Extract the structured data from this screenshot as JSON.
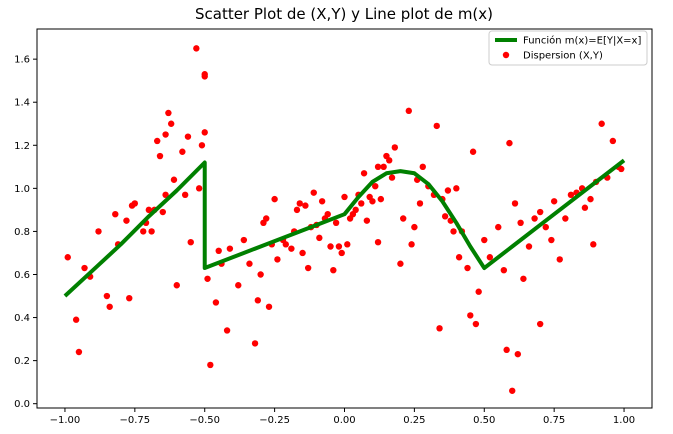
{
  "chart_data": {
    "type": "scatter",
    "title": "Scatter Plot de (X,Y) y Line plot de m(x)",
    "xlabel": "",
    "ylabel": "",
    "xlim": [
      -1.1,
      1.1
    ],
    "ylim": [
      -0.02,
      1.74
    ],
    "xticks": [
      -1.0,
      -0.75,
      -0.5,
      -0.25,
      0.0,
      0.25,
      0.5,
      0.75,
      1.0
    ],
    "xtick_labels": [
      "−1.00",
      "−0.75",
      "−0.50",
      "−0.25",
      "0.00",
      "0.25",
      "0.50",
      "0.75",
      "1.00"
    ],
    "yticks": [
      0.0,
      0.2,
      0.4,
      0.6,
      0.8,
      1.0,
      1.2,
      1.4,
      1.6
    ],
    "ytick_labels": [
      "0.0",
      "0.2",
      "0.4",
      "0.6",
      "0.8",
      "1.0",
      "1.2",
      "1.4",
      "1.6"
    ],
    "grid": false,
    "legend_position": "top-right",
    "series": [
      {
        "name": "Función m(x)=E[Y|X=x]",
        "kind": "line",
        "color": "#008000",
        "x": [
          -1.0,
          -0.9,
          -0.8,
          -0.7,
          -0.6,
          -0.5,
          -0.5,
          -0.4,
          -0.3,
          -0.2,
          -0.1,
          0.0,
          0.05,
          0.1,
          0.15,
          0.2,
          0.25,
          0.3,
          0.35,
          0.4,
          0.45,
          0.5,
          0.6,
          0.7,
          0.8,
          0.9,
          1.0
        ],
        "y": [
          0.5,
          0.62,
          0.74,
          0.87,
          0.99,
          1.12,
          0.63,
          0.68,
          0.73,
          0.78,
          0.83,
          0.88,
          0.96,
          1.03,
          1.07,
          1.08,
          1.07,
          1.02,
          0.94,
          0.84,
          0.73,
          0.63,
          0.73,
          0.83,
          0.93,
          1.03,
          1.13
        ]
      },
      {
        "name": "Dispersion (X,Y)",
        "kind": "scatter",
        "color": "#ff0000",
        "points": [
          [
            -0.99,
            0.68
          ],
          [
            -0.96,
            0.39
          ],
          [
            -0.95,
            0.24
          ],
          [
            -0.93,
            0.63
          ],
          [
            -0.91,
            0.59
          ],
          [
            -0.88,
            0.8
          ],
          [
            -0.85,
            0.5
          ],
          [
            -0.84,
            0.45
          ],
          [
            -0.82,
            0.88
          ],
          [
            -0.81,
            0.74
          ],
          [
            -0.78,
            0.85
          ],
          [
            -0.77,
            0.49
          ],
          [
            -0.76,
            0.92
          ],
          [
            -0.75,
            0.93
          ],
          [
            -0.72,
            0.8
          ],
          [
            -0.71,
            0.84
          ],
          [
            -0.7,
            0.9
          ],
          [
            -0.69,
            0.8
          ],
          [
            -0.68,
            0.9
          ],
          [
            -0.67,
            1.22
          ],
          [
            -0.66,
            1.15
          ],
          [
            -0.65,
            0.89
          ],
          [
            -0.64,
            0.97
          ],
          [
            -0.64,
            1.25
          ],
          [
            -0.63,
            1.35
          ],
          [
            -0.62,
            1.3
          ],
          [
            -0.61,
            1.04
          ],
          [
            -0.6,
            0.55
          ],
          [
            -0.58,
            1.17
          ],
          [
            -0.57,
            0.97
          ],
          [
            -0.56,
            1.24
          ],
          [
            -0.55,
            0.75
          ],
          [
            -0.53,
            1.65
          ],
          [
            -0.52,
            1.0
          ],
          [
            -0.51,
            1.2
          ],
          [
            -0.5,
            1.52
          ],
          [
            -0.5,
            1.53
          ],
          [
            -0.5,
            1.26
          ],
          [
            -0.49,
            0.58
          ],
          [
            -0.48,
            0.18
          ],
          [
            -0.46,
            0.47
          ],
          [
            -0.45,
            0.71
          ],
          [
            -0.44,
            0.65
          ],
          [
            -0.42,
            0.34
          ],
          [
            -0.41,
            0.72
          ],
          [
            -0.38,
            0.55
          ],
          [
            -0.36,
            0.76
          ],
          [
            -0.34,
            0.65
          ],
          [
            -0.32,
            0.28
          ],
          [
            -0.31,
            0.48
          ],
          [
            -0.3,
            0.6
          ],
          [
            -0.29,
            0.84
          ],
          [
            -0.28,
            0.86
          ],
          [
            -0.27,
            0.45
          ],
          [
            -0.26,
            0.74
          ],
          [
            -0.25,
            0.95
          ],
          [
            -0.24,
            0.67
          ],
          [
            -0.22,
            0.76
          ],
          [
            -0.21,
            0.74
          ],
          [
            -0.19,
            0.72
          ],
          [
            -0.18,
            0.8
          ],
          [
            -0.17,
            0.9
          ],
          [
            -0.16,
            0.93
          ],
          [
            -0.15,
            0.7
          ],
          [
            -0.14,
            0.92
          ],
          [
            -0.13,
            0.63
          ],
          [
            -0.12,
            0.82
          ],
          [
            -0.11,
            0.98
          ],
          [
            -0.1,
            0.83
          ],
          [
            -0.09,
            0.77
          ],
          [
            -0.08,
            0.94
          ],
          [
            -0.07,
            0.86
          ],
          [
            -0.06,
            0.88
          ],
          [
            -0.05,
            0.73
          ],
          [
            -0.04,
            0.62
          ],
          [
            -0.03,
            0.84
          ],
          [
            -0.02,
            0.73
          ],
          [
            -0.01,
            0.7
          ],
          [
            0.0,
            0.96
          ],
          [
            0.01,
            0.74
          ],
          [
            0.02,
            0.86
          ],
          [
            0.03,
            0.88
          ],
          [
            0.04,
            0.9
          ],
          [
            0.05,
            0.97
          ],
          [
            0.06,
            0.93
          ],
          [
            0.07,
            1.07
          ],
          [
            0.08,
            0.85
          ],
          [
            0.09,
            0.96
          ],
          [
            0.1,
            0.94
          ],
          [
            0.11,
            1.01
          ],
          [
            0.12,
            0.75
          ],
          [
            0.12,
            1.1
          ],
          [
            0.13,
            0.95
          ],
          [
            0.14,
            1.1
          ],
          [
            0.15,
            1.15
          ],
          [
            0.16,
            1.13
          ],
          [
            0.17,
            1.05
          ],
          [
            0.18,
            1.19
          ],
          [
            0.2,
            0.65
          ],
          [
            0.21,
            0.86
          ],
          [
            0.23,
            1.36
          ],
          [
            0.24,
            0.74
          ],
          [
            0.25,
            0.82
          ],
          [
            0.26,
            1.04
          ],
          [
            0.27,
            0.93
          ],
          [
            0.28,
            1.1
          ],
          [
            0.3,
            1.01
          ],
          [
            0.32,
            0.97
          ],
          [
            0.33,
            1.29
          ],
          [
            0.34,
            0.35
          ],
          [
            0.35,
            0.95
          ],
          [
            0.36,
            0.87
          ],
          [
            0.37,
            0.99
          ],
          [
            0.38,
            0.85
          ],
          [
            0.39,
            0.8
          ],
          [
            0.4,
            1.0
          ],
          [
            0.41,
            0.68
          ],
          [
            0.42,
            0.8
          ],
          [
            0.44,
            0.63
          ],
          [
            0.45,
            0.41
          ],
          [
            0.46,
            1.17
          ],
          [
            0.47,
            0.37
          ],
          [
            0.48,
            0.52
          ],
          [
            0.5,
            0.76
          ],
          [
            0.52,
            0.68
          ],
          [
            0.55,
            0.82
          ],
          [
            0.57,
            0.62
          ],
          [
            0.58,
            0.25
          ],
          [
            0.59,
            1.21
          ],
          [
            0.6,
            0.06
          ],
          [
            0.61,
            0.93
          ],
          [
            0.62,
            0.23
          ],
          [
            0.63,
            0.84
          ],
          [
            0.64,
            0.58
          ],
          [
            0.66,
            0.73
          ],
          [
            0.68,
            0.86
          ],
          [
            0.7,
            0.37
          ],
          [
            0.7,
            0.89
          ],
          [
            0.72,
            0.82
          ],
          [
            0.74,
            0.76
          ],
          [
            0.75,
            0.94
          ],
          [
            0.77,
            0.67
          ],
          [
            0.79,
            0.86
          ],
          [
            0.81,
            0.97
          ],
          [
            0.83,
            0.98
          ],
          [
            0.85,
            1.0
          ],
          [
            0.86,
            0.91
          ],
          [
            0.88,
            0.95
          ],
          [
            0.89,
            0.74
          ],
          [
            0.9,
            1.03
          ],
          [
            0.92,
            1.3
          ],
          [
            0.94,
            1.05
          ],
          [
            0.96,
            1.22
          ],
          [
            0.98,
            1.1
          ],
          [
            0.99,
            1.09
          ]
        ]
      }
    ]
  }
}
